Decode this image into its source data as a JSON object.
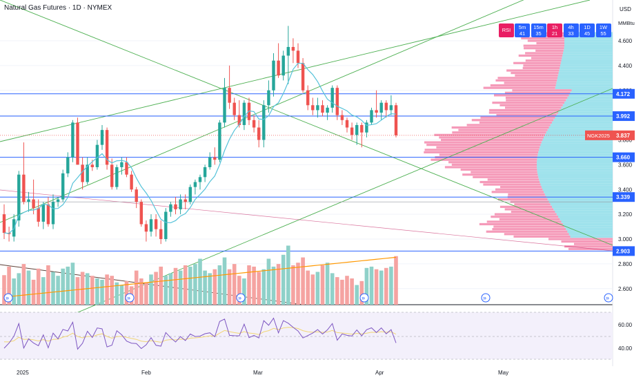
{
  "header": {
    "title": "Natural Gas Futures · 1D · NYMEX",
    "currency": "USD",
    "unit": "MMBtu"
  },
  "rsi_panel": {
    "label": "RSI",
    "buttons": [
      {
        "tf": "5m",
        "val": "41",
        "color": "#2962ff"
      },
      {
        "tf": "15m",
        "val": "35",
        "color": "#2962ff"
      },
      {
        "tf": "1h",
        "val": "21",
        "color": "#e91e63"
      },
      {
        "tf": "4h",
        "val": "33",
        "color": "#2962ff"
      },
      {
        "tf": "1D",
        "val": "45",
        "color": "#2962ff"
      },
      {
        "tf": "1W",
        "val": "55",
        "color": "#2962ff"
      }
    ]
  },
  "price_axis": {
    "ticks": [
      "4.600",
      "4.400",
      "4.200",
      "4.000",
      "3.800",
      "3.600",
      "3.400",
      "3.200",
      "3.000",
      "2.800",
      "2.600"
    ]
  },
  "rsi_axis": {
    "ticks": [
      "60.00",
      "40.00"
    ]
  },
  "time_axis": {
    "labels": [
      "2025",
      "Feb",
      "Mar",
      "Apr",
      "May"
    ]
  },
  "levels": [
    {
      "label": "4.172",
      "value": 4.172
    },
    {
      "label": "3.992",
      "value": 3.992
    },
    {
      "label": "3.660",
      "value": 3.66
    },
    {
      "label": "3.339",
      "value": 3.339
    },
    {
      "label": "2.903",
      "value": 2.903
    }
  ],
  "current_price": {
    "symbol": "NGK2025",
    "value": "3.837"
  },
  "colors": {
    "up": "#26a69a",
    "down": "#ef5350",
    "level": "#2962ff",
    "channel": "#4caf50",
    "ma": "#55c2d9",
    "vol_ma": "#ff9800",
    "rsi": "#7e57c2",
    "rsi_ma": "#f2d675",
    "profile_pink": "#f06292",
    "profile_cyan": "#4dd0e1"
  },
  "chart_data": {
    "type": "candlestick",
    "ylim": [
      2.5,
      4.7
    ],
    "candles": [
      [
        3.2,
        3.28,
        3.0,
        3.05
      ],
      [
        3.05,
        3.1,
        2.98,
        3.04
      ],
      [
        3.02,
        3.2,
        2.98,
        3.16
      ],
      [
        3.15,
        3.55,
        3.1,
        3.52
      ],
      [
        3.52,
        3.78,
        3.28,
        3.3
      ],
      [
        3.3,
        3.38,
        3.22,
        3.32
      ],
      [
        3.32,
        3.48,
        3.2,
        3.25
      ],
      [
        3.25,
        3.32,
        3.1,
        3.14
      ],
      [
        3.14,
        3.3,
        3.08,
        3.28
      ],
      [
        3.28,
        3.34,
        3.1,
        3.12
      ],
      [
        3.12,
        3.36,
        3.08,
        3.3
      ],
      [
        3.3,
        3.34,
        3.26,
        3.32
      ],
      [
        3.32,
        3.56,
        3.3,
        3.53
      ],
      [
        3.53,
        3.7,
        3.5,
        3.66
      ],
      [
        3.66,
        3.96,
        3.62,
        3.94
      ],
      [
        3.94,
        3.98,
        3.6,
        3.6
      ],
      [
        3.6,
        3.66,
        3.4,
        3.46
      ],
      [
        3.46,
        3.66,
        3.44,
        3.6
      ],
      [
        3.6,
        3.64,
        3.55,
        3.58
      ],
      [
        3.58,
        3.8,
        3.56,
        3.76
      ],
      [
        3.76,
        3.92,
        3.72,
        3.88
      ],
      [
        3.88,
        3.9,
        3.56,
        3.6
      ],
      [
        3.6,
        3.65,
        3.4,
        3.42
      ],
      [
        3.42,
        3.6,
        3.4,
        3.58
      ],
      [
        3.58,
        3.66,
        3.52,
        3.62
      ],
      [
        3.62,
        3.66,
        3.5,
        3.52
      ],
      [
        3.52,
        3.55,
        3.38,
        3.4
      ],
      [
        3.4,
        3.42,
        3.25,
        3.3
      ],
      [
        3.3,
        3.32,
        3.1,
        3.12
      ],
      [
        3.12,
        3.15,
        2.98,
        3.06
      ],
      [
        3.06,
        3.2,
        3.02,
        3.16
      ],
      [
        3.16,
        3.2,
        3.02,
        3.08
      ],
      [
        3.08,
        3.15,
        2.96,
        3.0
      ],
      [
        3.0,
        3.25,
        2.98,
        3.22
      ],
      [
        3.22,
        3.3,
        3.18,
        3.28
      ],
      [
        3.28,
        3.34,
        3.2,
        3.24
      ],
      [
        3.24,
        3.36,
        3.2,
        3.32
      ],
      [
        3.32,
        3.36,
        3.24,
        3.3
      ],
      [
        3.3,
        3.44,
        3.28,
        3.42
      ],
      [
        3.42,
        3.48,
        3.36,
        3.46
      ],
      [
        3.46,
        3.52,
        3.4,
        3.5
      ],
      [
        3.5,
        3.6,
        3.46,
        3.58
      ],
      [
        3.58,
        3.7,
        3.56,
        3.66
      ],
      [
        3.66,
        3.74,
        3.6,
        3.64
      ],
      [
        3.64,
        3.96,
        3.62,
        3.94
      ],
      [
        3.94,
        4.3,
        3.9,
        4.22
      ],
      [
        4.22,
        4.4,
        4.05,
        4.1
      ],
      [
        4.1,
        4.14,
        3.96,
        4.0
      ],
      [
        4.0,
        4.12,
        3.9,
        3.92
      ],
      [
        3.92,
        4.12,
        3.88,
        4.1
      ],
      [
        4.1,
        4.14,
        3.92,
        3.96
      ],
      [
        3.96,
        4.0,
        3.86,
        3.9
      ],
      [
        3.9,
        3.96,
        3.74,
        3.8
      ],
      [
        3.8,
        4.12,
        3.74,
        4.08
      ],
      [
        4.08,
        4.28,
        4.02,
        4.2
      ],
      [
        4.2,
        4.5,
        4.15,
        4.44
      ],
      [
        4.44,
        4.58,
        4.3,
        4.32
      ],
      [
        4.32,
        4.52,
        4.28,
        4.48
      ],
      [
        4.48,
        4.72,
        4.25,
        4.55
      ],
      [
        4.55,
        4.62,
        4.42,
        4.52
      ],
      [
        4.52,
        4.58,
        4.38,
        4.42
      ],
      [
        4.42,
        4.46,
        4.18,
        4.2
      ],
      [
        4.2,
        4.24,
        4.04,
        4.08
      ],
      [
        4.08,
        4.14,
        4.0,
        4.04
      ],
      [
        4.04,
        4.14,
        3.98,
        4.08
      ],
      [
        4.08,
        4.12,
        3.99,
        4.02
      ],
      [
        4.02,
        4.08,
        3.96,
        4.06
      ],
      [
        4.06,
        4.24,
        4.02,
        4.22
      ],
      [
        4.22,
        4.24,
        3.96,
        4.0
      ],
      [
        4.0,
        4.04,
        3.92,
        3.96
      ],
      [
        3.96,
        3.98,
        3.86,
        3.9
      ],
      [
        3.9,
        3.94,
        3.8,
        3.84
      ],
      [
        3.84,
        3.94,
        3.76,
        3.92
      ],
      [
        3.92,
        3.94,
        3.74,
        3.86
      ],
      [
        3.86,
        3.96,
        3.82,
        3.94
      ],
      [
        3.94,
        4.06,
        3.92,
        4.04
      ],
      [
        4.04,
        4.2,
        3.98,
        4.02
      ],
      [
        4.02,
        4.12,
        3.96,
        4.1
      ],
      [
        4.1,
        4.12,
        3.98,
        4.04
      ],
      [
        4.04,
        4.16,
        4.0,
        4.08
      ],
      [
        4.08,
        4.1,
        3.82,
        3.837
      ]
    ],
    "volume": [
      45,
      58,
      40,
      48,
      62,
      52,
      38,
      55,
      42,
      60,
      50,
      44,
      55,
      58,
      64,
      42,
      50,
      48,
      44,
      40,
      38,
      46,
      44,
      34,
      30,
      36,
      28,
      52,
      40,
      34,
      46,
      50,
      58,
      44,
      48,
      56,
      52,
      60,
      58,
      62,
      70,
      52,
      48,
      54,
      60,
      72,
      54,
      62,
      44,
      40,
      60,
      58,
      50,
      54,
      70,
      58,
      62,
      76,
      90,
      60,
      64,
      72,
      52,
      46,
      50,
      60,
      64,
      48,
      42,
      38,
      44,
      40,
      30,
      36,
      56,
      58,
      54,
      52,
      56,
      58,
      74
    ],
    "series": [
      {
        "name": "NGK2025",
        "type": "candlestick"
      }
    ]
  }
}
